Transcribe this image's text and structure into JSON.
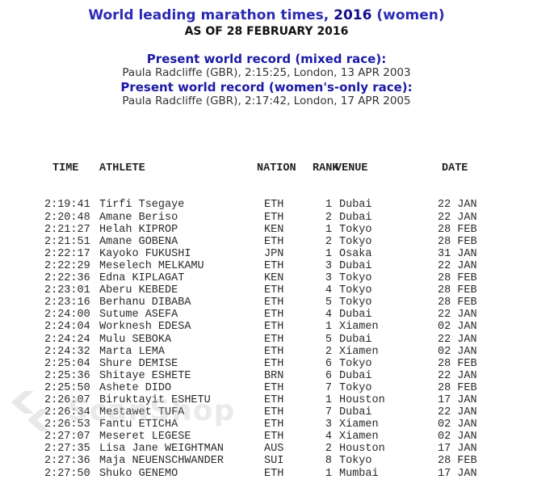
{
  "header": {
    "title_before": "World leading marathon times, ",
    "title_year": "2016",
    "title_after": " (women)",
    "as_of": "AS OF 28 FEBRUARY 2016"
  },
  "records": [
    {
      "label": "Present world record (mixed race):",
      "value": "Paula Radcliffe (GBR), 2:15:25, London, 13 APR 2003"
    },
    {
      "label": "Present world record (women's-only race):",
      "value": "Paula Radcliffe (GBR), 2:17:42, London, 17 APR 2005"
    }
  ],
  "table": {
    "headers": [
      "TIME",
      "ATHLETE",
      "NATION",
      "RANK",
      "VENUE",
      "DATE"
    ],
    "rows": [
      [
        "2:19:41",
        "Tirfi Tsegaye",
        "ETH",
        "1",
        "Dubai",
        "22 JAN"
      ],
      [
        "2:20:48",
        "Amane Beriso",
        "ETH",
        "2",
        "Dubai",
        "22 JAN"
      ],
      [
        "2:21:27",
        "Helah KIPROP",
        "KEN",
        "1",
        "Tokyo",
        "28 FEB"
      ],
      [
        "2:21:51",
        "Amane GOBENA",
        "ETH",
        "2",
        "Tokyo",
        "28 FEB"
      ],
      [
        "2:22:17",
        "Kayoko FUKUSHI",
        "JPN",
        "1",
        "Osaka",
        "31 JAN"
      ],
      [
        "2:22:29",
        "Meselech MELKAMU",
        "ETH",
        "3",
        "Dubai",
        "22 JAN"
      ],
      [
        "2:22:36",
        "Edna KIPLAGAT",
        "KEN",
        "3",
        "Tokyo",
        "28 FEB"
      ],
      [
        "2:23:01",
        "Aberu KEBEDE",
        "ETH",
        "4",
        "Tokyo",
        "28 FEB"
      ],
      [
        "2:23:16",
        "Berhanu DIBABA",
        "ETH",
        "5",
        "Tokyo",
        "28 FEB"
      ],
      [
        "2:24:00",
        "Sutume ASEFA",
        "ETH",
        "4",
        "Dubai",
        "22 JAN"
      ],
      [
        "2:24:04",
        "Worknesh EDESA",
        "ETH",
        "1",
        "Xiamen",
        "02 JAN"
      ],
      [
        "2:24:24",
        "Mulu SEBOKA",
        "ETH",
        "5",
        "Dubai",
        "22 JAN"
      ],
      [
        "2:24:32",
        "Marta LEMA",
        "ETH",
        "2",
        "Xiamen",
        "02 JAN"
      ],
      [
        "2:25:04",
        "Shure DEMISE",
        "ETH",
        "6",
        "Tokyo",
        "28 FEB"
      ],
      [
        "2:25:36",
        "Shitaye ESHETE",
        "BRN",
        "6",
        "Dubai",
        "22 JAN"
      ],
      [
        "2:25:50",
        "Ashete DIDO",
        "ETH",
        "7",
        "Tokyo",
        "28 FEB"
      ],
      [
        "2:26:07",
        "Biruktayit ESHETU",
        "ETH",
        "1",
        "Houston",
        "17 JAN"
      ],
      [
        "2:26:34",
        "Mestawet TUFA",
        "ETH",
        "7",
        "Dubai",
        "22 JAN"
      ],
      [
        "2:26:53",
        "Fantu ETICHA",
        "ETH",
        "3",
        "Xiamen",
        "02 JAN"
      ],
      [
        "2:27:07",
        "Meseret LEGESE",
        "ETH",
        "4",
        "Xiamen",
        "02 JAN"
      ],
      [
        "2:27:35",
        "Lisa Jane WEIGHTMAN",
        "AUS",
        "2",
        "Houston",
        "17 JAN"
      ],
      [
        "2:27:36",
        "Maja NEUENSCHWANDER",
        "SUI",
        "8",
        "Tokyo",
        "28 FEB"
      ],
      [
        "2:27:50",
        "Shuko GENEMO",
        "ETH",
        "1",
        "Mumbai",
        "17 JAN"
      ]
    ]
  },
  "watermark": {
    "text": "ScanShop"
  },
  "colors": {
    "title_blue": "#2b2bb4",
    "title_year_blue": "#10108c",
    "record_blue": "#1b1ba5",
    "body_text": "#333333",
    "table_text": "#2a2a2a",
    "watermark_gray": "#bcbcbc"
  }
}
